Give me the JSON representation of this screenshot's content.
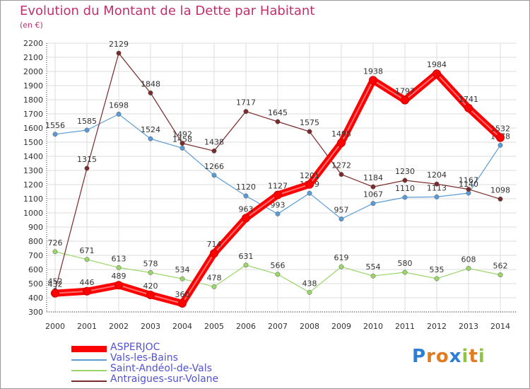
{
  "title": "Evolution du Montant de la Dette par Habitant",
  "subtitle": "(en €)",
  "logo": {
    "parts": [
      {
        "text": "P",
        "color": "#2d7fd6"
      },
      {
        "text": "r",
        "color": "#e07b20"
      },
      {
        "text": "o",
        "color": "#e07b20"
      },
      {
        "text": "x",
        "color": "#2d7fd6"
      },
      {
        "text": "i",
        "color": "#8ec641"
      },
      {
        "text": "t",
        "color": "#e07b20"
      },
      {
        "text": "i",
        "color": "#8ec641"
      }
    ]
  },
  "chart_data": {
    "type": "line",
    "title": "Evolution du Montant de la Dette par Habitant",
    "ylabel": "(en €)",
    "xlabel": "",
    "x": [
      "2000",
      "2001",
      "2002",
      "2003",
      "2004",
      "2005",
      "2006",
      "2007",
      "2008",
      "2009",
      "2010",
      "2011",
      "2012",
      "2013",
      "2014"
    ],
    "ylim": [
      300,
      2200
    ],
    "yticks": [
      300,
      400,
      500,
      600,
      700,
      800,
      900,
      1000,
      1100,
      1200,
      1300,
      1400,
      1500,
      1600,
      1700,
      1800,
      1900,
      2000,
      2100,
      2200
    ],
    "grid": true,
    "legend_position": "bottom-left",
    "series": [
      {
        "name": "Saint-Andéol-de-Vals",
        "color": "#9ad66a",
        "values": [
          726,
          671,
          613,
          578,
          534,
          478,
          631,
          566,
          438,
          619,
          554,
          580,
          535,
          608,
          562
        ]
      },
      {
        "name": "Vals-les-Bains",
        "color": "#5b9bd5",
        "values": [
          1556,
          1585,
          1698,
          1524,
          1458,
          1266,
          1120,
          993,
          1139,
          957,
          1067,
          1110,
          1113,
          1140,
          1478
        ]
      },
      {
        "name": "Antraigues-sur-Volane",
        "color": "#7a2a2a",
        "values": [
          452,
          1315,
          2129,
          1848,
          1492,
          1438,
          1717,
          1645,
          1575,
          1272,
          1184,
          1230,
          1204,
          1167,
          1098
        ]
      },
      {
        "name": "ASPERJOC",
        "color": "#ff0000",
        "values": [
          432,
          446,
          489,
          420,
          360,
          714,
          963,
          1127,
          1201,
          1495,
          1938,
          1797,
          1984,
          1741,
          1532
        ]
      }
    ],
    "legend_order": [
      "ASPERJOC",
      "Vals-les-Bains",
      "Saint-Andéol-de-Vals",
      "Antraigues-sur-Volane"
    ],
    "emphasized_series": "ASPERJOC"
  }
}
